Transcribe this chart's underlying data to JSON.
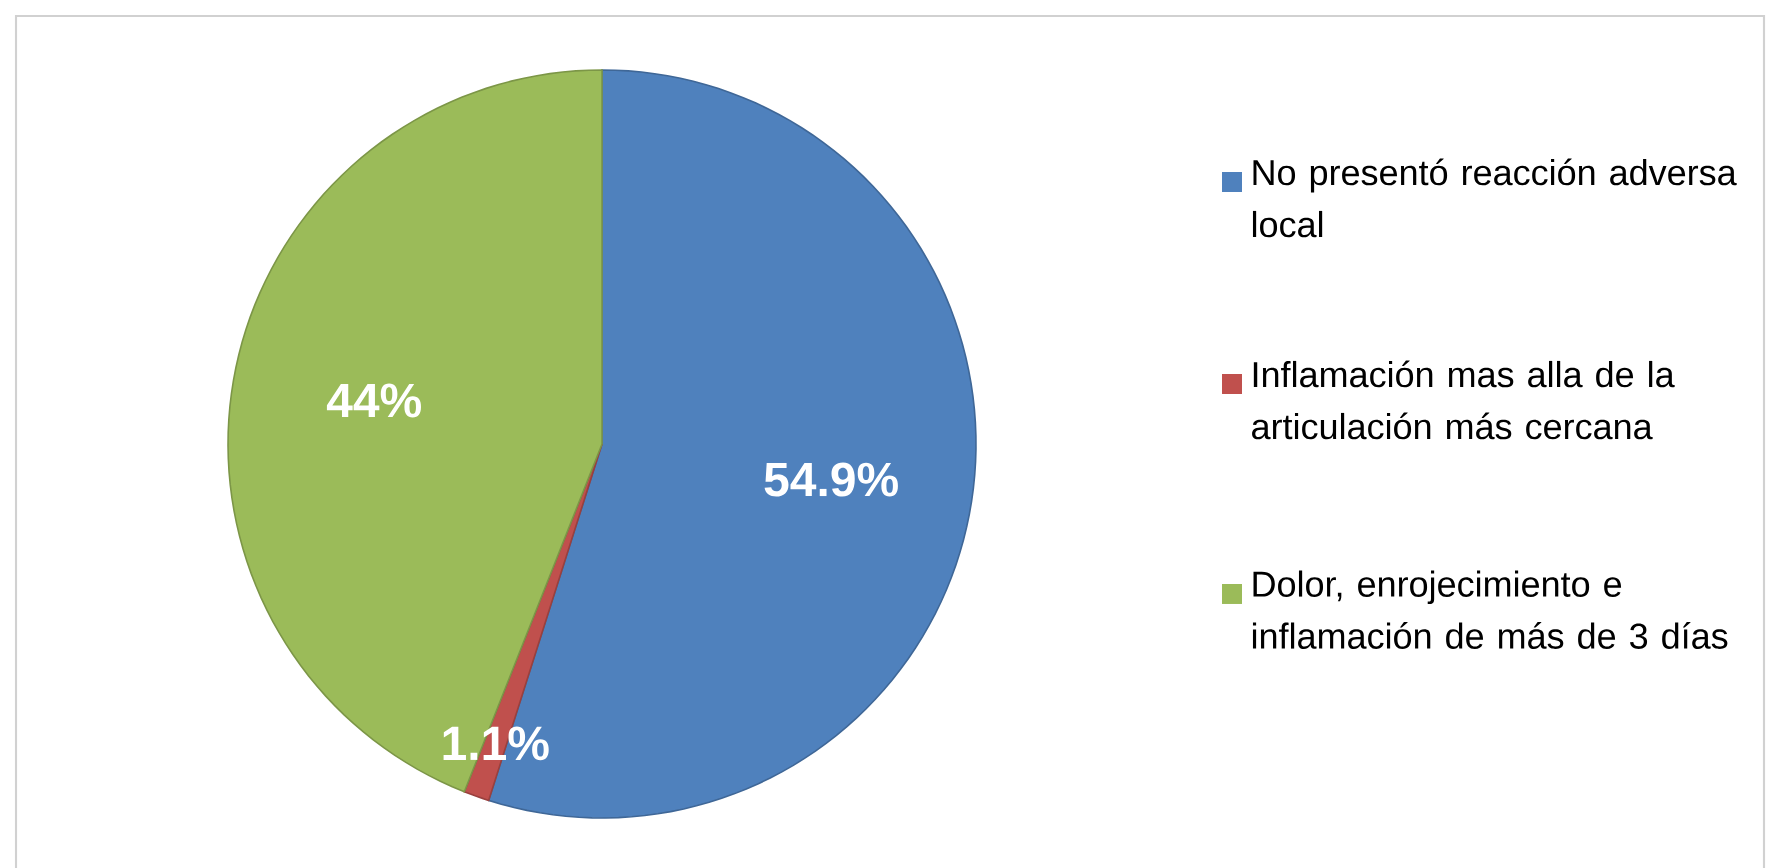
{
  "chart_data": {
    "type": "pie",
    "categories": [
      "No presentó reacción adversa local",
      "Inflamación mas alla de la articulación más cercana",
      "Dolor, enrojecimiento e inflamación de más de 3 días"
    ],
    "values": [
      54.9,
      1.1,
      44
    ],
    "colors": [
      "#4f81bd",
      "#c0504d",
      "#9bbb59"
    ],
    "value_labels": [
      "54.9%",
      "1.1%",
      "44%"
    ],
    "legend": "right"
  }
}
